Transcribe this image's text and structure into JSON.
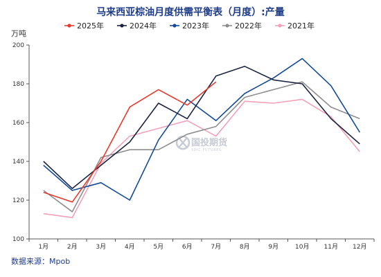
{
  "chart_data": {
    "type": "line",
    "title": "马来西亚棕油月度供需平衡表（月度）:产量",
    "ylabel": "万吨",
    "xlabel": "",
    "categories": [
      "1月",
      "2月",
      "3月",
      "4月",
      "5月",
      "6月",
      "7月",
      "8月",
      "9月",
      "10月",
      "11月",
      "12月"
    ],
    "ylim": [
      100,
      200
    ],
    "yticks": [
      100,
      120,
      140,
      160,
      180,
      200
    ],
    "grid": false,
    "legend_position": "top-center",
    "series": [
      {
        "name": "2025年",
        "color": "#e8392a",
        "values": [
          124,
          119,
          140,
          168,
          177,
          169,
          181,
          null,
          null,
          null,
          null,
          null
        ]
      },
      {
        "name": "2024年",
        "color": "#1c2340",
        "values": [
          140,
          126,
          138,
          150,
          170,
          162,
          184,
          189,
          182,
          180,
          162,
          149
        ]
      },
      {
        "name": "2023年",
        "color": "#134a9a",
        "values": [
          138,
          125,
          129,
          120,
          151,
          172,
          161,
          175,
          183,
          193,
          179,
          155
        ]
      },
      {
        "name": "2022年",
        "color": "#8e8e8e",
        "values": [
          125,
          114,
          142,
          146,
          146,
          154,
          158,
          173,
          177,
          181,
          168,
          162
        ]
      },
      {
        "name": "2021年",
        "color": "#f4a0b8",
        "values": [
          113,
          111,
          139,
          153,
          157,
          161,
          153,
          171,
          170,
          172,
          163,
          145
        ]
      }
    ]
  },
  "source": "数据来源：Mpob",
  "watermark": {
    "name": "国投期货",
    "sub": "SDIC FUTURES"
  },
  "colors": {
    "title": "#1f3c88",
    "source": "#1f3c88",
    "axis": "#555555",
    "watermark": "#b8bec9"
  }
}
